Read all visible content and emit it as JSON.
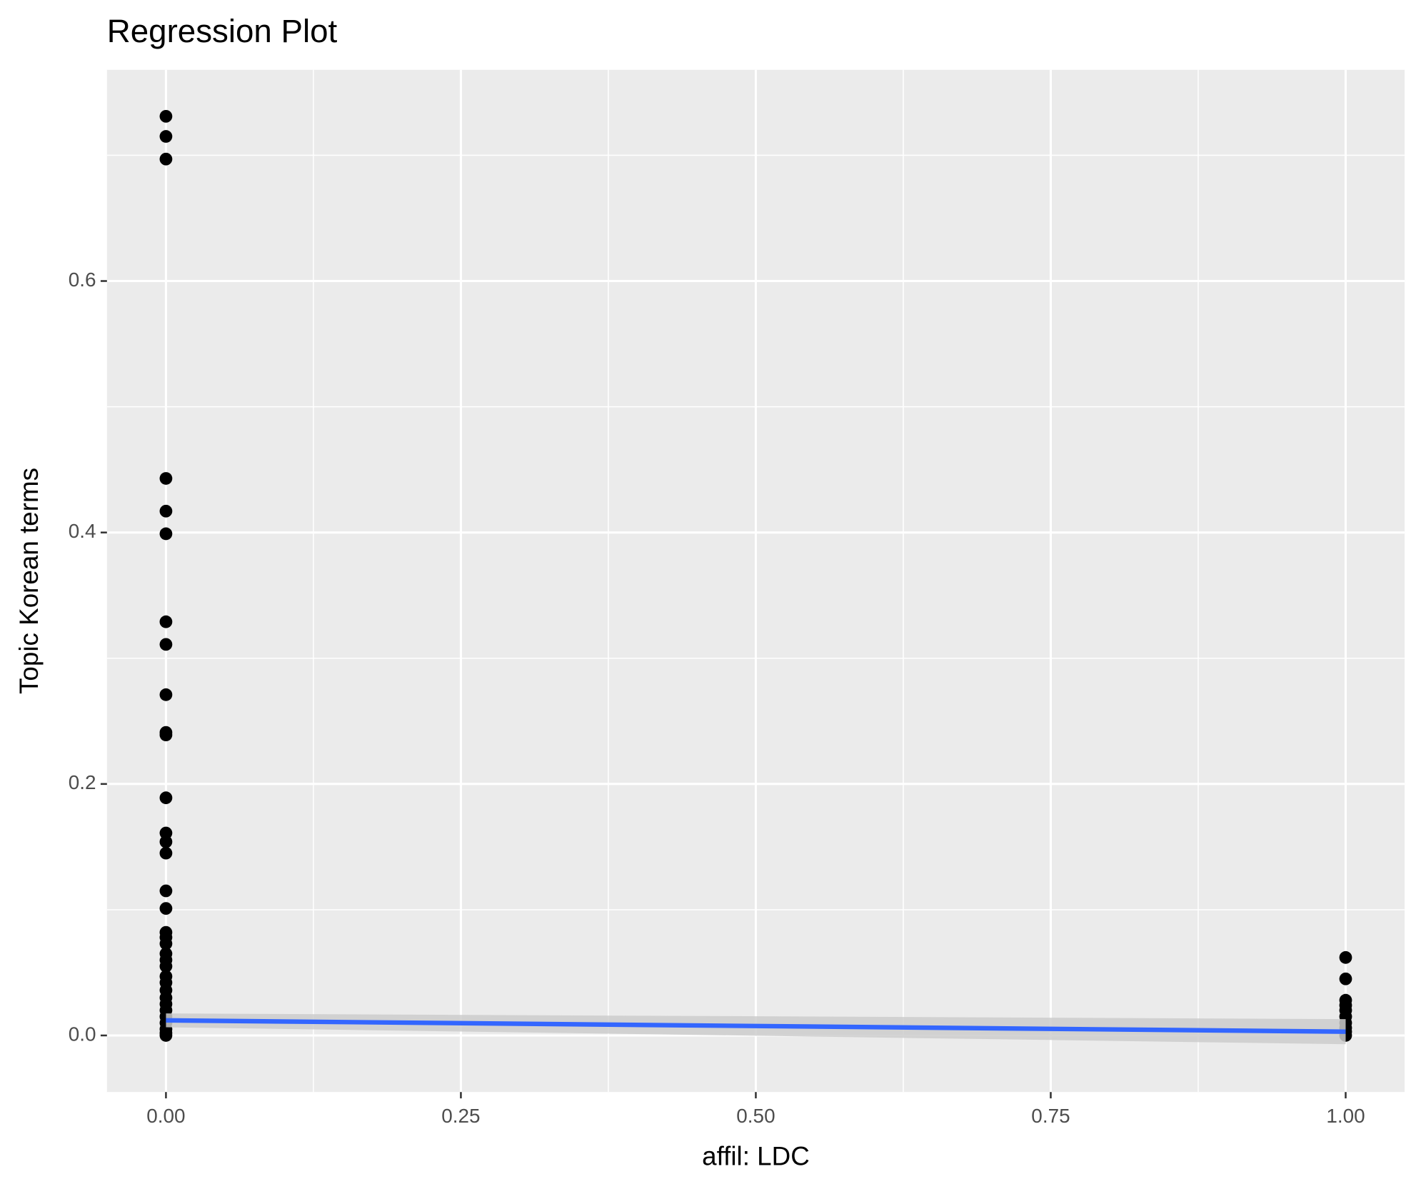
{
  "chart_data": {
    "type": "scatter",
    "title": "Regression Plot",
    "x_label": "affil: LDC",
    "y_label": "Topic Korean terms",
    "xlim": [
      -0.05,
      1.05
    ],
    "ylim": [
      -0.045,
      0.768
    ],
    "xticks": [
      {
        "value": 0,
        "label": "0.00"
      },
      {
        "value": 0.25,
        "label": "0.25"
      },
      {
        "value": 0.5,
        "label": "0.50"
      },
      {
        "value": 0.75,
        "label": "0.75"
      },
      {
        "value": 1,
        "label": "1.00"
      }
    ],
    "yticks": [
      {
        "value": 0,
        "label": "0.0"
      },
      {
        "value": 0.2,
        "label": "0.2"
      },
      {
        "value": 0.4,
        "label": "0.4"
      },
      {
        "value": 0.6,
        "label": "0.6"
      }
    ],
    "grid": true,
    "points": {
      "color": "#000000",
      "x": [
        0,
        0,
        0,
        0,
        0,
        0,
        0,
        0,
        0,
        0,
        0,
        0,
        0,
        0,
        0,
        0,
        0,
        0,
        0,
        0,
        0,
        0,
        0,
        0,
        0,
        0,
        0,
        0,
        0,
        0,
        0,
        0,
        0,
        0,
        1,
        1,
        1,
        1,
        1,
        1,
        1,
        1,
        1,
        1
      ],
      "y": [
        0.731,
        0.715,
        0.697,
        0.443,
        0.417,
        0.399,
        0.329,
        0.311,
        0.271,
        0.241,
        0.239,
        0.189,
        0.161,
        0.154,
        0.145,
        0.115,
        0.101,
        0.082,
        0.078,
        0.073,
        0.065,
        0.06,
        0.055,
        0.047,
        0.042,
        0.036,
        0.03,
        0.025,
        0.02,
        0.015,
        0.01,
        0.005,
        0.002,
        0.0,
        0.062,
        0.045,
        0.028,
        0.024,
        0.02,
        0.015,
        0.01,
        0.006,
        0.003,
        0.0
      ]
    },
    "fit": {
      "color": "#3366ff",
      "band_color": "#cccccc",
      "x": [
        0,
        1
      ],
      "y": [
        0.012,
        0.003
      ],
      "lower": [
        0.0065,
        -0.007
      ],
      "upper": [
        0.0175,
        0.013
      ]
    }
  }
}
